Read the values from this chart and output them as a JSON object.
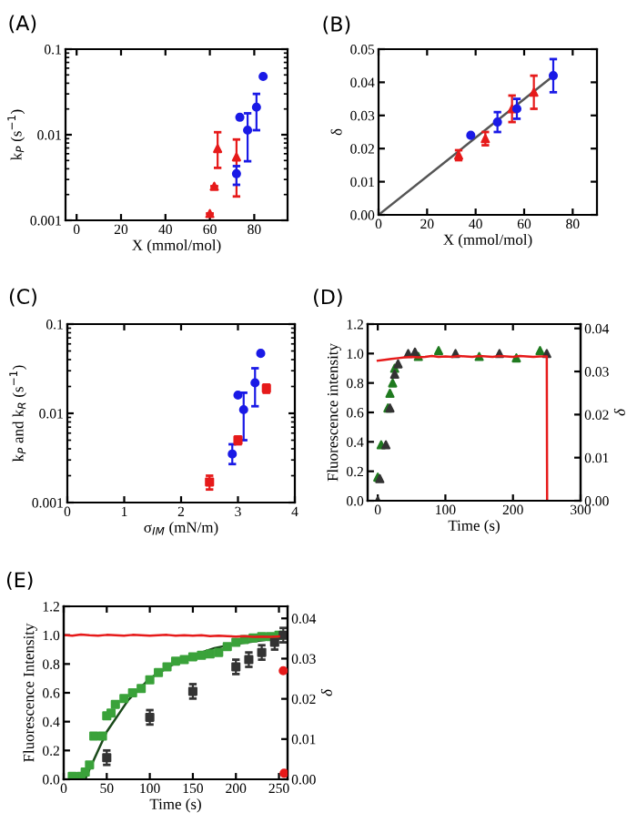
{
  "chart_data": [
    {
      "type": "scatter",
      "title": "(A)",
      "xlabel": "X (mmol/mol)",
      "ylabel": "k$_{P}$ (s$^{−1}$)",
      "log": "y",
      "xlim": [
        -5,
        95
      ],
      "xticks": [
        0,
        20,
        40,
        60,
        80
      ],
      "ylim": [
        0.001,
        0.1
      ],
      "yticks": [
        0.001,
        0.01,
        0.1
      ],
      "grid": false,
      "legend": false,
      "series": [
        {
          "color": "#e61a1a",
          "marker": "triangle",
          "x": [
            60,
            62,
            63.5,
            72
          ],
          "values": [
            0.0012,
            0.0025,
            0.0069,
            0.0055
          ],
          "errors": [
            null,
            null,
            [
              0.0041,
              0.0107
            ],
            [
              0.0019,
              0.0088
            ]
          ]
        },
        {
          "color": "#1a1ae6",
          "marker": "circle",
          "x": [
            72,
            73.5,
            77,
            81,
            84
          ],
          "values": [
            0.0035,
            0.016,
            0.0113,
            0.021,
            0.048
          ],
          "errors": [
            [
              0.0026,
              0.0043
            ],
            null,
            [
              0.0049,
              0.0178
            ],
            [
              0.0113,
              0.03
            ],
            null
          ]
        }
      ]
    },
    {
      "type": "scatter",
      "title": "(B)",
      "xlabel": "X (mmol/mol)",
      "ylabel": "δ",
      "xlim": [
        0,
        90
      ],
      "xticks": [
        0,
        20,
        40,
        60,
        80
      ],
      "ylim": [
        0,
        0.05
      ],
      "yticks": [
        {
          "value": 0,
          "label": "0.00"
        },
        {
          "value": 0.01,
          "label": "0.01"
        },
        {
          "value": 0.02,
          "label": "0.02"
        },
        {
          "value": 0.03,
          "label": "0.03"
        },
        {
          "value": 0.04,
          "label": "0.04"
        },
        {
          "value": 0.05,
          "label": "0.05"
        }
      ],
      "grid": false,
      "legend": false,
      "series": [
        {
          "type": "line",
          "color": "#555555",
          "marker": "none",
          "x": [
            0,
            73
          ],
          "values": [
            0,
            0.0425
          ]
        },
        {
          "color": "#e61a1a",
          "marker": "triangle",
          "x": [
            33,
            44,
            55,
            64
          ],
          "values": [
            0.018,
            0.023,
            0.032,
            0.037
          ],
          "errors": [
            0.0015,
            0.002,
            0.004,
            0.005
          ]
        },
        {
          "color": "#1a1ae6",
          "marker": "circle",
          "x": [
            38,
            49,
            57,
            72
          ],
          "values": [
            0.024,
            0.028,
            0.032,
            0.042
          ],
          "errors": [
            null,
            0.003,
            0.003,
            0.005
          ]
        }
      ]
    },
    {
      "type": "scatter",
      "title": "(C)",
      "xlabel": "σ$_{IM}$ (mN/m)",
      "ylabel": "k$_{P}$ and k$_{R}$ (s$^{−1}$)",
      "log": "y",
      "xlim": [
        0,
        4
      ],
      "xticks": [
        0,
        1,
        2,
        3,
        4
      ],
      "ylim": [
        0.001,
        0.1
      ],
      "yticks": [
        0.001,
        0.01,
        0.1
      ],
      "grid": false,
      "legend": false,
      "series": [
        {
          "color": "#1a1ae6",
          "marker": "circle",
          "x": [
            2.9,
            3.0,
            3.1,
            3.3,
            3.4
          ],
          "values": [
            0.0035,
            0.016,
            0.011,
            0.022,
            0.047
          ],
          "errors": [
            [
              0.0027,
              0.0045
            ],
            null,
            [
              0.005,
              0.017
            ],
            [
              0.012,
              0.032
            ],
            null
          ]
        },
        {
          "color": "#e61a1a",
          "marker": "square",
          "x": [
            2.5,
            3.0,
            3.5
          ],
          "values": [
            0.0017,
            0.005,
            0.019
          ],
          "errors": [
            [
              0.0014,
              0.002
            ],
            [
              0.0045,
              0.0055
            ],
            [
              0.017,
              0.021
            ]
          ]
        }
      ]
    },
    {
      "type": "scatter",
      "title": "(D)",
      "xlabel": "Time (s)",
      "ylabel": "Fluorescence intensity",
      "y2label": "δ",
      "xlim": [
        -15,
        300
      ],
      "xticks": [
        0,
        100,
        200,
        300
      ],
      "ylim": [
        0,
        1.2
      ],
      "yticks": [
        {
          "value": 0,
          "label": "0.0"
        },
        0.2,
        0.4,
        0.6,
        0.8,
        {
          "value": 1,
          "label": "1.0"
        },
        1.2
      ],
      "y2lim": [
        0,
        0.041
      ],
      "y2ticks": [
        {
          "value": 0,
          "label": "0.00"
        },
        {
          "value": 0.01,
          "label": "0.01"
        },
        {
          "value": 0.02,
          "label": "0.02"
        },
        {
          "value": 0.03,
          "label": "0.03"
        },
        {
          "value": 0.04,
          "label": "0.04"
        }
      ],
      "grid": false,
      "legend": false,
      "series": [
        {
          "type": "line",
          "axis": "y2",
          "color": "#e61a1a",
          "marker": "none",
          "x": [
            0,
            10,
            20,
            30,
            40,
            50,
            60,
            70,
            80,
            90,
            100,
            110,
            120,
            130,
            140,
            150,
            160,
            170,
            180,
            190,
            200,
            210,
            220,
            230,
            240,
            250,
            250.5
          ],
          "values": [
            0.0325,
            0.0327,
            0.0329,
            0.0331,
            0.0333,
            0.0334,
            0.0333,
            0.0334,
            0.0336,
            0.0334,
            0.0335,
            0.0334,
            0.0336,
            0.0335,
            0.0334,
            0.0336,
            0.0335,
            0.0334,
            0.0336,
            0.0335,
            0.0334,
            0.0336,
            0.0335,
            0.0334,
            0.0335,
            0.0335,
            0
          ]
        },
        {
          "color": "#1f7a1f",
          "marker": "triangle",
          "x": [
            0,
            5,
            15,
            18,
            22,
            25,
            60,
            90,
            150,
            205,
            240
          ],
          "values": [
            0.16,
            0.38,
            0.63,
            0.73,
            0.8,
            0.9,
            0.98,
            1.02,
            0.98,
            0.97,
            1.02
          ]
        },
        {
          "color": "#333333",
          "marker": "triangle",
          "x": [
            0,
            3,
            12,
            18,
            25,
            30,
            45,
            55,
            115,
            180,
            250
          ],
          "values": [
            0,
            0.15,
            0.38,
            0.63,
            0.86,
            0.93,
            1.0,
            1.01,
            1.0,
            1.0,
            1.0
          ]
        }
      ]
    },
    {
      "type": "scatter",
      "title": "(E)",
      "xlabel": "Time (s)",
      "ylabel": "Fluorescence Intensity",
      "y2label": "δ",
      "xlim": [
        0,
        260
      ],
      "xticks": [
        0,
        50,
        100,
        150,
        200,
        250
      ],
      "ylim": [
        0,
        1.2
      ],
      "yticks": [
        {
          "value": 0,
          "label": "0.0"
        },
        0.2,
        0.4,
        0.6,
        0.8,
        {
          "value": 1,
          "label": "1.0"
        },
        1.2
      ],
      "y2lim": [
        0,
        0.043
      ],
      "y2ticks": [
        {
          "value": 0,
          "label": "0.00"
        },
        {
          "value": 0.01,
          "label": "0.01"
        },
        {
          "value": 0.02,
          "label": "0.02"
        },
        {
          "value": 0.03,
          "label": "0.03"
        },
        {
          "value": 0.04,
          "label": "0.04"
        }
      ],
      "grid": false,
      "legend": false,
      "series": [
        {
          "type": "line",
          "axis": "y2",
          "color": "#e61a1a",
          "marker": "none",
          "x": [
            0,
            10,
            20,
            30,
            40,
            50,
            60,
            70,
            80,
            90,
            100,
            110,
            120,
            130,
            140,
            150,
            160,
            170,
            180,
            190,
            200,
            210,
            220,
            230,
            240,
            250
          ],
          "values": [
            0.0359,
            0.0357,
            0.036,
            0.0358,
            0.0357,
            0.0359,
            0.0358,
            0.0357,
            0.0359,
            0.0358,
            0.0357,
            0.0358,
            0.0359,
            0.0357,
            0.0358,
            0.0357,
            0.0358,
            0.0356,
            0.0357,
            0.0356,
            0.0355,
            0.0356,
            0.0354,
            0.0355,
            0.0354,
            0.0355
          ]
        },
        {
          "axis": "y2",
          "color": "#e61a1a",
          "marker": "circle",
          "x": [
            255,
            256
          ],
          "values": [
            0.027,
            0.0015
          ]
        },
        {
          "color": "#3aa23a",
          "marker": "square",
          "x": [
            10,
            20,
            25,
            30,
            35,
            45,
            50,
            55,
            60,
            70,
            80,
            90,
            100,
            110,
            120,
            130,
            140,
            150,
            160,
            170,
            180,
            190,
            200,
            210,
            220,
            230,
            240,
            250
          ],
          "values": [
            0.02,
            0.02,
            0.05,
            0.1,
            0.3,
            0.3,
            0.44,
            0.46,
            0.52,
            0.56,
            0.6,
            0.63,
            0.69,
            0.74,
            0.78,
            0.82,
            0.83,
            0.85,
            0.86,
            0.87,
            0.88,
            0.92,
            0.95,
            0.97,
            0.98,
            0.99,
            0.99,
            1.0
          ]
        },
        {
          "color": "#333333",
          "marker": "square",
          "x": [
            50,
            100,
            150,
            200,
            215,
            230,
            245,
            255
          ],
          "values": [
            0.15,
            0.43,
            0.61,
            0.78,
            0.83,
            0.88,
            0.95,
            1.0
          ],
          "errors": [
            0.05,
            0.05,
            0.05,
            0.05,
            0.05,
            0.05,
            0.05,
            0.05
          ]
        },
        {
          "type": "line",
          "color": "#1a4a1a",
          "marker": "none",
          "x": [
            25,
            30,
            40,
            50,
            75,
            100,
            125,
            150,
            175,
            200,
            225,
            250
          ],
          "values": [
            0,
            0.07,
            0.2,
            0.33,
            0.55,
            0.7,
            0.79,
            0.86,
            0.91,
            0.94,
            0.96,
            0.98
          ]
        }
      ]
    }
  ]
}
